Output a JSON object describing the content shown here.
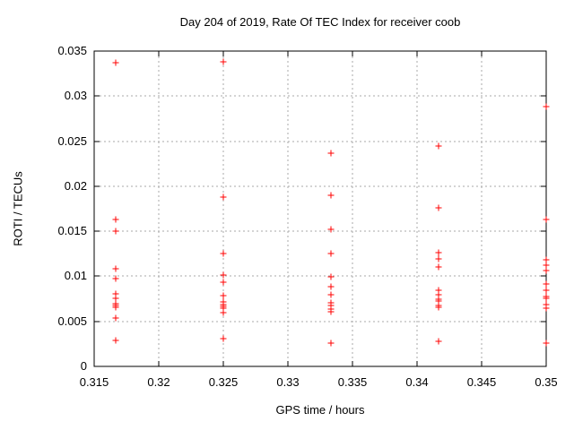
{
  "window": {
    "background": "#ffffff"
  },
  "chart_data": {
    "type": "scatter",
    "title": "Day 204 of 2019, Rate Of TEC Index for receiver coob",
    "xlabel": "GPS time / hours",
    "ylabel": "ROTI / TECUs",
    "xlim": [
      0.315,
      0.35
    ],
    "ylim": [
      0,
      0.035
    ],
    "xticks": [
      0.315,
      0.32,
      0.325,
      0.33,
      0.335,
      0.34,
      0.345,
      0.35
    ],
    "xtick_labels": [
      "0.315",
      "0.32",
      "0.325",
      "0.33",
      "0.335",
      "0.34",
      "0.345",
      "0.35"
    ],
    "yticks": [
      0,
      0.005,
      0.01,
      0.015,
      0.02,
      0.025,
      0.03,
      0.035
    ],
    "ytick_labels": [
      "0",
      "0.005",
      "0.01",
      "0.015",
      "0.02",
      "0.025",
      "0.03",
      "0.035"
    ],
    "grid": true,
    "legend": "none",
    "marker": {
      "shape": "plus",
      "color": "#ff0000",
      "size": 7
    },
    "colors": {
      "marker": "#ff0000",
      "grid": "#a8a8a8",
      "axis": "#000000",
      "background": "#ffffff"
    },
    "series": [
      {
        "name": "ROTI",
        "points": [
          [
            0.31667,
            0.0337
          ],
          [
            0.31667,
            0.0163
          ],
          [
            0.31667,
            0.015
          ],
          [
            0.31667,
            0.0108
          ],
          [
            0.31667,
            0.0097
          ],
          [
            0.31667,
            0.0081
          ],
          [
            0.31667,
            0.0076
          ],
          [
            0.31667,
            0.007
          ],
          [
            0.31667,
            0.0068
          ],
          [
            0.31667,
            0.0066
          ],
          [
            0.31667,
            0.0054
          ],
          [
            0.31667,
            0.0029
          ],
          [
            0.325,
            0.0338
          ],
          [
            0.325,
            0.0188
          ],
          [
            0.325,
            0.0125
          ],
          [
            0.325,
            0.0101
          ],
          [
            0.325,
            0.0093
          ],
          [
            0.325,
            0.0079
          ],
          [
            0.325,
            0.0072
          ],
          [
            0.325,
            0.0069
          ],
          [
            0.325,
            0.0067
          ],
          [
            0.325,
            0.0065
          ],
          [
            0.325,
            0.006
          ],
          [
            0.325,
            0.0031
          ],
          [
            0.33333,
            0.0237
          ],
          [
            0.33333,
            0.019
          ],
          [
            0.33333,
            0.0152
          ],
          [
            0.33333,
            0.0125
          ],
          [
            0.33333,
            0.0099
          ],
          [
            0.33333,
            0.0088
          ],
          [
            0.33333,
            0.008
          ],
          [
            0.33333,
            0.0071
          ],
          [
            0.33333,
            0.0068
          ],
          [
            0.33333,
            0.0064
          ],
          [
            0.33333,
            0.0061
          ],
          [
            0.33333,
            0.0026
          ],
          [
            0.34167,
            0.0245
          ],
          [
            0.34167,
            0.0176
          ],
          [
            0.34167,
            0.0126
          ],
          [
            0.34167,
            0.0119
          ],
          [
            0.34167,
            0.011
          ],
          [
            0.34167,
            0.0085
          ],
          [
            0.34167,
            0.008
          ],
          [
            0.34167,
            0.0075
          ],
          [
            0.34167,
            0.0073
          ],
          [
            0.34167,
            0.0068
          ],
          [
            0.34167,
            0.0066
          ],
          [
            0.34167,
            0.0028
          ],
          [
            0.35,
            0.0288
          ],
          [
            0.35,
            0.0163
          ],
          [
            0.35,
            0.0118
          ],
          [
            0.35,
            0.0112
          ],
          [
            0.35,
            0.0106
          ],
          [
            0.35,
            0.0091
          ],
          [
            0.35,
            0.0085
          ],
          [
            0.35,
            0.0078
          ],
          [
            0.35,
            0.0076
          ],
          [
            0.35,
            0.0069
          ],
          [
            0.35,
            0.0065
          ],
          [
            0.35,
            0.0026
          ]
        ]
      }
    ]
  }
}
